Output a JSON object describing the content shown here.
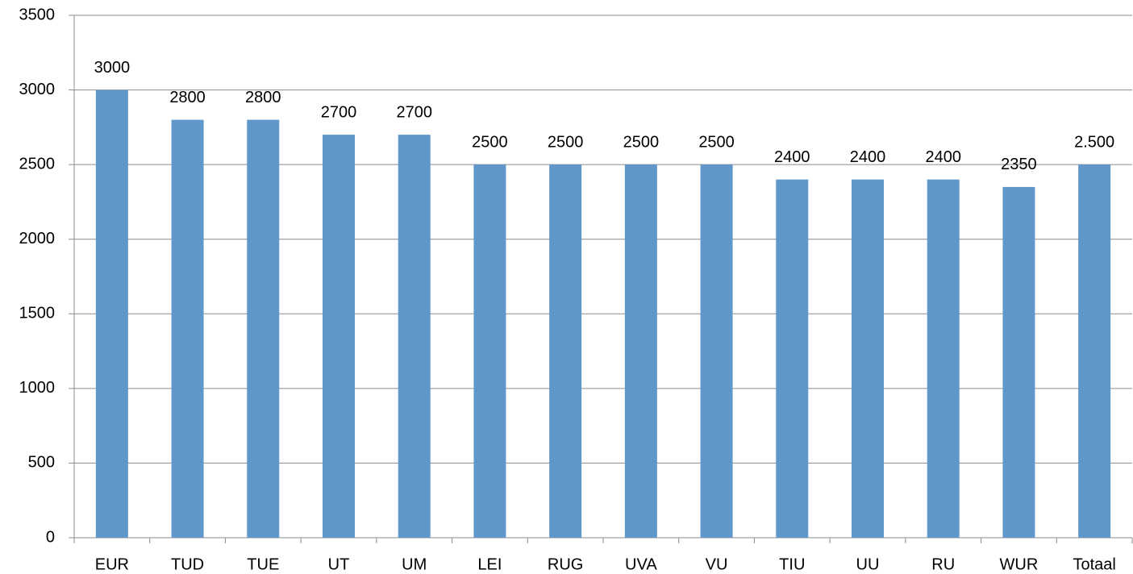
{
  "chart_data": {
    "type": "bar",
    "categories": [
      "EUR",
      "TUD",
      "TUE",
      "UT",
      "UM",
      "LEI",
      "RUG",
      "UVA",
      "VU",
      "TIU",
      "UU",
      "RU",
      "WUR",
      "Totaal"
    ],
    "values": [
      3000,
      2800,
      2800,
      2700,
      2700,
      2500,
      2500,
      2500,
      2500,
      2400,
      2400,
      2400,
      2350,
      2500
    ],
    "value_labels": [
      "3000",
      "2800",
      "2800",
      "2700",
      "2700",
      "2500",
      "2500",
      "2500",
      "2500",
      "2400",
      "2400",
      "2400",
      "2350",
      "2.500"
    ],
    "color": "#6097ca",
    "ylim": [
      0,
      3500
    ],
    "yticks": [
      0,
      500,
      1000,
      1500,
      2000,
      2500,
      3000,
      3500
    ],
    "grid": true
  }
}
